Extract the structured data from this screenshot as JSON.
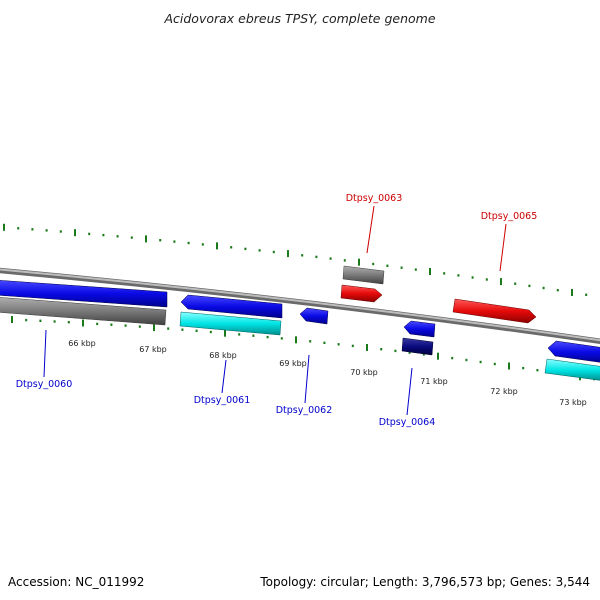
{
  "figure": {
    "title": "Acidovorax ebreus TPSY, complete genome",
    "footer_left": "Accession: NC_011992",
    "footer_right": "Topology: circular; Length: 3,796,573 bp; Genes: 3,544"
  },
  "colors": {
    "forward_cds": "#0a0ae6",
    "forward_cds_light": "#00e5e5",
    "reverse_cds": "#e60a0a",
    "other_gene": "#7a7a7a",
    "highlight_gene": "#0a0a80",
    "backbone": "#8c8c8c",
    "tick_mark": "#1a7a1a",
    "forward_label": "#0000cc",
    "reverse_label": "#cc0000"
  },
  "scale_ticks": [
    {
      "label": "66 kbp"
    },
    {
      "label": "67 kbp"
    },
    {
      "label": "68 kbp"
    },
    {
      "label": "69 kbp"
    },
    {
      "label": "70 kbp"
    },
    {
      "label": "71 kbp"
    },
    {
      "label": "72 kbp"
    },
    {
      "label": "73 kbp"
    }
  ],
  "gene_labels": [
    {
      "id": "Dtpsy_0060",
      "strand": "forward"
    },
    {
      "id": "Dtpsy_0061",
      "strand": "forward"
    },
    {
      "id": "Dtpsy_0062",
      "strand": "forward"
    },
    {
      "id": "Dtpsy_0063",
      "strand": "reverse"
    },
    {
      "id": "Dtpsy_0064",
      "strand": "forward"
    },
    {
      "id": "Dtpsy_0065",
      "strand": "reverse"
    }
  ]
}
